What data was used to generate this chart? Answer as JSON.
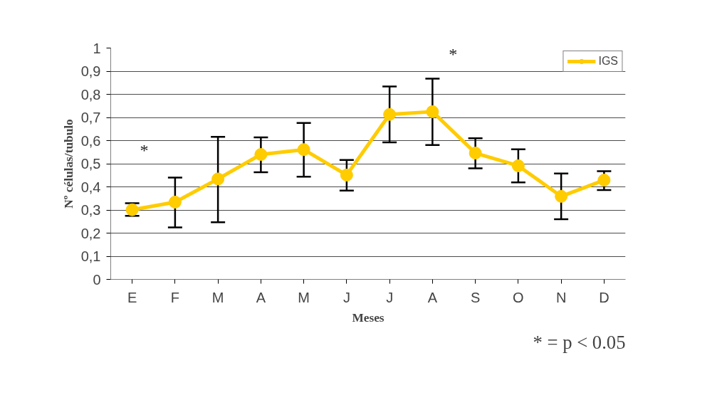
{
  "chart_data": {
    "type": "line",
    "xlabel": "Meses",
    "ylabel": "Nº células/tubulo",
    "categories": [
      "E",
      "F",
      "M",
      "A",
      "M",
      "J",
      "J",
      "A",
      "S",
      "O",
      "N",
      "D"
    ],
    "series": [
      {
        "name": "IGS",
        "color": "#ffcc00",
        "values": [
          0.301,
          0.334,
          0.434,
          0.54,
          0.561,
          0.451,
          0.713,
          0.725,
          0.546,
          0.491,
          0.359,
          0.429
        ],
        "errors": [
          [
            0.275,
            0.329
          ],
          [
            0.225,
            0.44
          ],
          [
            0.247,
            0.616
          ],
          [
            0.463,
            0.614
          ],
          [
            0.444,
            0.676
          ],
          [
            0.384,
            0.516
          ],
          [
            0.592,
            0.834
          ],
          [
            0.581,
            0.868
          ],
          [
            0.48,
            0.61
          ],
          [
            0.419,
            0.562
          ],
          [
            0.26,
            0.458
          ],
          [
            0.386,
            0.468
          ]
        ]
      }
    ],
    "ylim": [
      0,
      1
    ],
    "yticks": [
      0,
      {
        "value": 0.1,
        "label": "0,1"
      },
      {
        "value": 0.2,
        "label": "0,2"
      },
      {
        "value": 0.3,
        "label": "0,3"
      },
      {
        "value": 0.4,
        "label": "0,4"
      },
      {
        "value": 0.5,
        "label": "0,5"
      },
      {
        "value": 0.6,
        "label": "0,6"
      },
      {
        "value": 0.7,
        "label": "0,7"
      },
      {
        "value": 0.8,
        "label": "0,8"
      },
      {
        "value": 0.9,
        "label": "0,9"
      },
      1
    ],
    "grid": "y",
    "legend": "top right",
    "marker": "circle",
    "line_style": "solid",
    "annotations": [
      "*",
      "*",
      "* = p < 0.05"
    ]
  }
}
